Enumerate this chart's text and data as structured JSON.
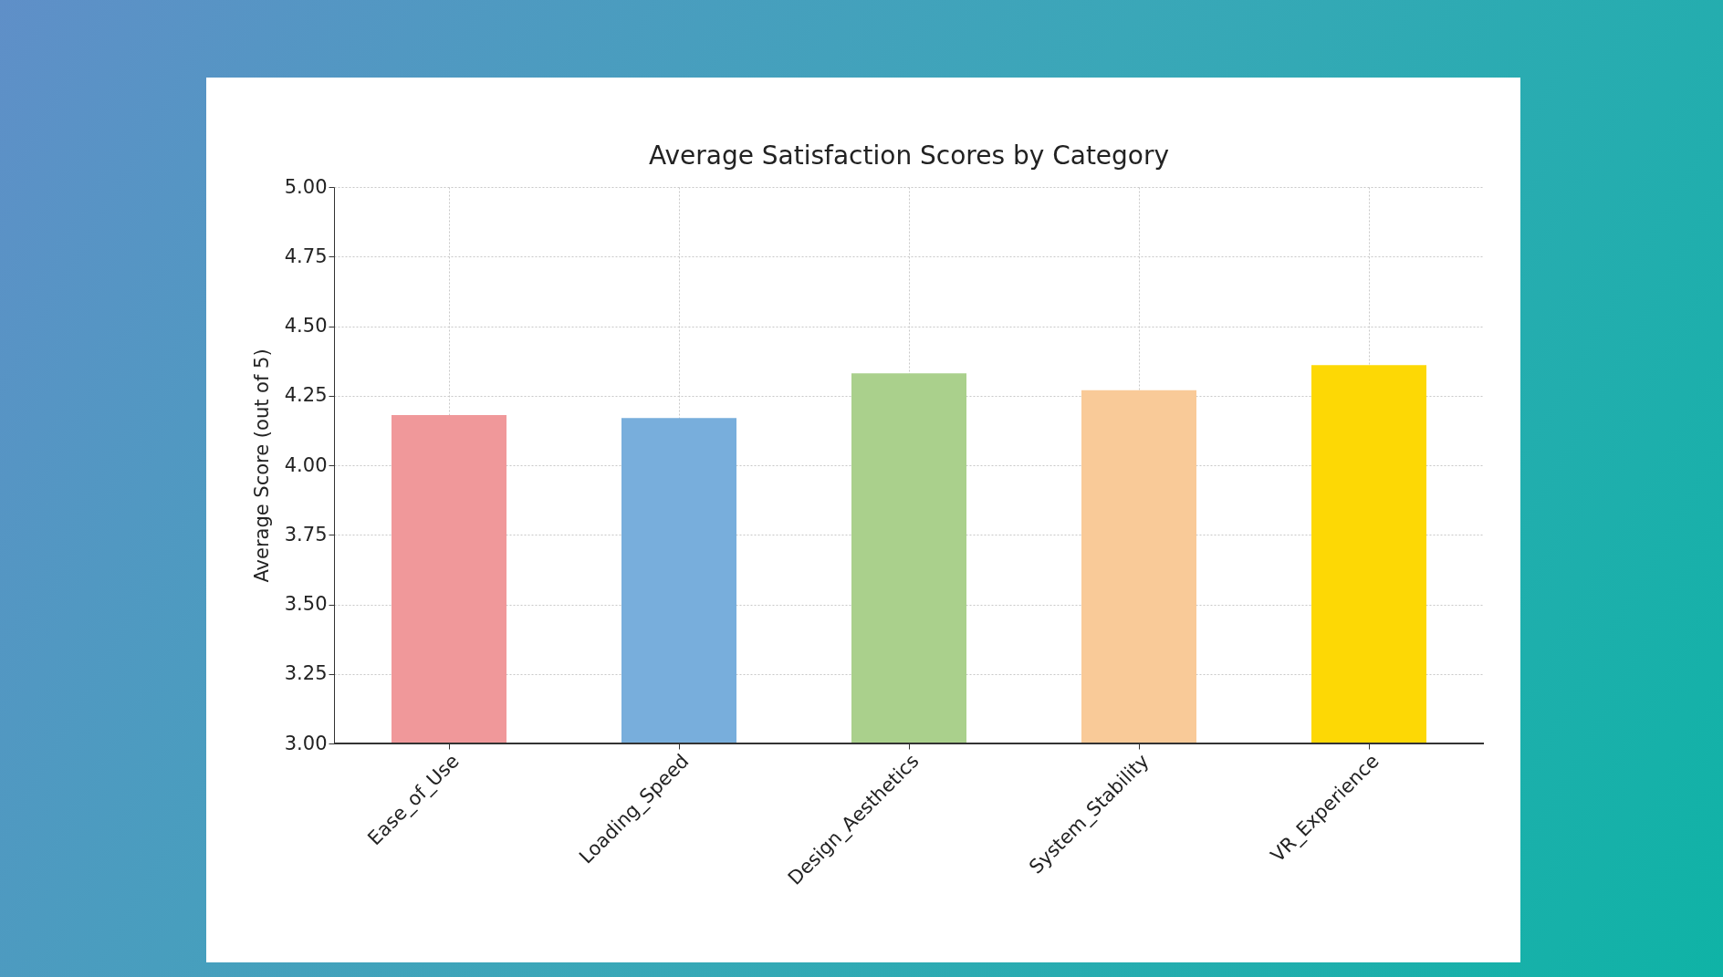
{
  "chart_data": {
    "type": "bar",
    "title": "Average Satisfaction Scores by Category",
    "ylabel": "Average Score (out of 5)",
    "categories": [
      "Ease_of_Use",
      "Loading_Speed",
      "Design_Aesthetics",
      "System_Stability",
      "VR_Experience"
    ],
    "values": [
      4.18,
      4.17,
      4.33,
      4.27,
      4.36
    ],
    "colors": [
      "#f0989a",
      "#78aedc",
      "#aad08c",
      "#f9ca98",
      "#fdd805"
    ],
    "ylim": [
      3,
      5
    ],
    "yticks": [
      {
        "value": 3,
        "label": "3.00"
      },
      {
        "value": 3.25,
        "label": "3.25"
      },
      {
        "value": 3.5,
        "label": "3.50"
      },
      {
        "value": 3.75,
        "label": "3.75"
      },
      {
        "value": 4,
        "label": "4.00"
      },
      {
        "value": 4.25,
        "label": "4.25"
      },
      {
        "value": 4.5,
        "label": "4.50"
      },
      {
        "value": 4.75,
        "label": "4.75"
      },
      {
        "value": 5,
        "label": "5.00"
      }
    ],
    "grid": true
  }
}
